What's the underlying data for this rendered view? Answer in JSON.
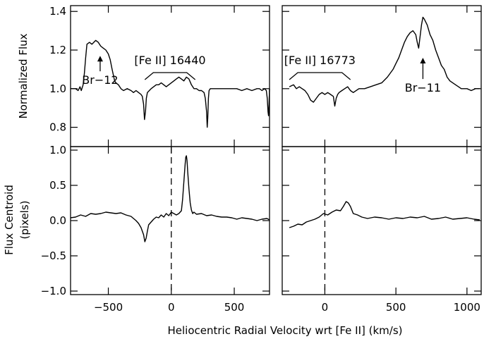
{
  "figure": {
    "xlabel": "Heliocentric Radial Velocity wrt [Fe II] (km/s)",
    "ylabel_top": "Normalized Flux",
    "ylabel_bottom_line1": "Flux Centroid",
    "ylabel_bottom_line2": "(pixels)"
  },
  "chart_data": [
    {
      "id": "top-left",
      "type": "line",
      "xlim": [
        -800,
        780
      ],
      "ylim": [
        0.7,
        1.43
      ],
      "yticks": [
        0.8,
        1.0,
        1.2,
        1.4
      ],
      "ytick_labels": [
        "0.8",
        "1.0",
        "1.2",
        "1.4"
      ],
      "series": [
        {
          "x": [
            -800,
            -760,
            -740,
            -725,
            -715,
            -700,
            -690,
            -680,
            -670,
            -650,
            -630,
            -600,
            -580,
            -560,
            -540,
            -520,
            -500,
            -485,
            -470,
            -460,
            -450,
            -440,
            -420,
            -400,
            -380,
            -350,
            -320,
            -300,
            -280,
            -260,
            -240,
            -230,
            -220,
            -213,
            -205,
            -198,
            -190,
            -175,
            -160,
            -140,
            -120,
            -100,
            -80,
            -60,
            -40,
            -20,
            0,
            20,
            40,
            60,
            80,
            100,
            120,
            140,
            160,
            180,
            200,
            220,
            240,
            260,
            270,
            280,
            285,
            290,
            295,
            300,
            310,
            330,
            360,
            400,
            440,
            480,
            520,
            560,
            600,
            640,
            680,
            700,
            720,
            740,
            755,
            762,
            768,
            772,
            776,
            780
          ],
          "y": [
            1.0,
            1.0,
            0.99,
            1.01,
            0.99,
            1.02,
            1.08,
            1.16,
            1.23,
            1.24,
            1.23,
            1.25,
            1.24,
            1.22,
            1.21,
            1.2,
            1.18,
            1.15,
            1.1,
            1.07,
            1.04,
            1.03,
            1.02,
            1.0,
            0.99,
            1.0,
            0.99,
            0.98,
            0.99,
            0.98,
            0.97,
            0.96,
            0.92,
            0.84,
            0.88,
            0.95,
            0.98,
            0.99,
            1.0,
            1.01,
            1.02,
            1.02,
            1.03,
            1.02,
            1.01,
            1.02,
            1.03,
            1.04,
            1.05,
            1.06,
            1.05,
            1.04,
            1.06,
            1.05,
            1.02,
            1.0,
            1.0,
            0.99,
            0.99,
            0.98,
            0.95,
            0.88,
            0.8,
            0.85,
            0.95,
            0.99,
            1.0,
            1.0,
            1.0,
            1.0,
            1.0,
            1.0,
            1.0,
            0.99,
            1.0,
            0.99,
            1.0,
            1.0,
            0.99,
            1.0,
            0.99,
            0.95,
            0.88,
            0.86,
            0.92,
            1.0
          ]
        }
      ],
      "annotations": [
        {
          "text": "[Fe II] 16440",
          "bracket_x": [
            -210,
            190
          ]
        },
        {
          "text": "Br-12",
          "arrow_x": -565,
          "arrow_from_y": 1.09,
          "arrow_to_y": 1.17
        }
      ]
    },
    {
      "id": "top-right",
      "type": "line",
      "xlim": [
        -300,
        1100
      ],
      "ylim": [
        0.7,
        1.43
      ],
      "yticks": [
        0.8,
        1.0,
        1.2,
        1.4
      ],
      "ytick_labels": [
        "",
        "",
        "",
        ""
      ],
      "series": [
        {
          "x": [
            -250,
            -220,
            -200,
            -180,
            -160,
            -140,
            -120,
            -100,
            -80,
            -60,
            -40,
            -20,
            0,
            20,
            40,
            60,
            70,
            80,
            90,
            100,
            120,
            140,
            160,
            180,
            200,
            240,
            280,
            320,
            360,
            400,
            440,
            480,
            500,
            520,
            540,
            560,
            580,
            600,
            620,
            640,
            650,
            660,
            670,
            680,
            690,
            700,
            720,
            740,
            760,
            780,
            800,
            820,
            840,
            860,
            880,
            900,
            920,
            940,
            960,
            980,
            1000,
            1030,
            1060,
            1090
          ],
          "y": [
            1.01,
            1.02,
            1.0,
            1.01,
            1.0,
            0.99,
            0.97,
            0.94,
            0.93,
            0.95,
            0.97,
            0.98,
            0.97,
            0.98,
            0.97,
            0.96,
            0.91,
            0.95,
            0.97,
            0.98,
            0.99,
            1.0,
            1.01,
            0.99,
            0.98,
            1.0,
            1.0,
            1.01,
            1.02,
            1.03,
            1.06,
            1.1,
            1.13,
            1.16,
            1.2,
            1.24,
            1.27,
            1.29,
            1.3,
            1.28,
            1.24,
            1.21,
            1.27,
            1.33,
            1.37,
            1.36,
            1.33,
            1.28,
            1.25,
            1.2,
            1.16,
            1.12,
            1.1,
            1.06,
            1.04,
            1.03,
            1.02,
            1.01,
            1.0,
            1.0,
            1.0,
            0.99,
            1.0,
            1.0
          ]
        }
      ],
      "annotations": [
        {
          "text": "[Fe II] 16773",
          "bracket_x": [
            -250,
            180
          ]
        },
        {
          "text": "Br-11",
          "arrow_x": 690,
          "arrow_from_y": 1.05,
          "arrow_to_y": 1.16
        }
      ]
    },
    {
      "id": "bottom-left",
      "type": "line",
      "xlim": [
        -800,
        780
      ],
      "ylim": [
        -1.05,
        1.05
      ],
      "yticks": [
        -1.0,
        -0.5,
        0.0,
        0.5,
        1.0
      ],
      "ytick_labels": [
        "-1.0",
        "-0.5",
        "0.0",
        "0.5",
        "1.0"
      ],
      "xticks": [
        -500,
        0,
        500
      ],
      "xtick_labels": [
        "-500",
        "0",
        "500"
      ],
      "vline_x": 0,
      "series": [
        {
          "x": [
            -800,
            -760,
            -720,
            -680,
            -640,
            -600,
            -560,
            -520,
            -480,
            -440,
            -400,
            -360,
            -320,
            -300,
            -280,
            -260,
            -240,
            -220,
            -210,
            -200,
            -190,
            -180,
            -160,
            -140,
            -120,
            -100,
            -80,
            -60,
            -40,
            -20,
            0,
            20,
            40,
            60,
            80,
            90,
            100,
            110,
            115,
            120,
            125,
            130,
            140,
            150,
            160,
            170,
            180,
            200,
            240,
            280,
            320,
            360,
            400,
            440,
            480,
            520,
            560,
            600,
            640,
            680,
            720,
            760,
            780
          ],
          "y": [
            0.04,
            0.05,
            0.08,
            0.06,
            0.1,
            0.09,
            0.1,
            0.12,
            0.11,
            0.1,
            0.11,
            0.08,
            0.06,
            0.03,
            0.0,
            -0.04,
            -0.1,
            -0.2,
            -0.3,
            -0.25,
            -0.15,
            -0.06,
            -0.02,
            0.02,
            0.05,
            0.04,
            0.08,
            0.05,
            0.1,
            0.07,
            0.12,
            0.1,
            0.08,
            0.1,
            0.14,
            0.3,
            0.55,
            0.8,
            0.9,
            0.92,
            0.85,
            0.7,
            0.45,
            0.25,
            0.15,
            0.1,
            0.12,
            0.09,
            0.1,
            0.07,
            0.08,
            0.06,
            0.05,
            0.05,
            0.04,
            0.02,
            0.04,
            0.03,
            0.02,
            0.0,
            0.02,
            0.03,
            0.01
          ]
        }
      ]
    },
    {
      "id": "bottom-right",
      "type": "line",
      "xlim": [
        -300,
        1100
      ],
      "ylim": [
        -1.05,
        1.05
      ],
      "yticks": [
        -1.0,
        -0.5,
        0.0,
        0.5,
        1.0
      ],
      "ytick_labels": [
        "",
        "",
        "",
        "",
        ""
      ],
      "xticks": [
        0,
        500,
        1000
      ],
      "xtick_labels": [
        "0",
        "500",
        "1000"
      ],
      "vline_x": 0,
      "series": [
        {
          "x": [
            -250,
            -220,
            -190,
            -160,
            -130,
            -100,
            -70,
            -40,
            -10,
            20,
            50,
            80,
            110,
            130,
            150,
            165,
            180,
            200,
            230,
            260,
            300,
            350,
            400,
            450,
            500,
            550,
            600,
            650,
            700,
            750,
            800,
            850,
            900,
            950,
            1000,
            1050,
            1090
          ],
          "y": [
            -0.1,
            -0.08,
            -0.05,
            -0.06,
            -0.02,
            0.0,
            0.02,
            0.05,
            0.1,
            0.08,
            0.12,
            0.15,
            0.14,
            0.2,
            0.27,
            0.25,
            0.2,
            0.1,
            0.08,
            0.05,
            0.03,
            0.05,
            0.04,
            0.02,
            0.04,
            0.03,
            0.05,
            0.04,
            0.06,
            0.02,
            0.03,
            0.05,
            0.02,
            0.03,
            0.04,
            0.02,
            0.01
          ]
        }
      ]
    }
  ]
}
